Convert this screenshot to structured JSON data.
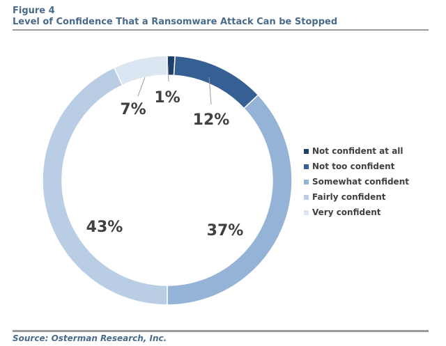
{
  "figure_label": "Figure 4",
  "source": "Source: Osterman Research, Inc.",
  "chart_data": {
    "type": "pie",
    "variant": "donut",
    "title": "Level of Confidence That a Ransomware Attack Can be Stopped",
    "categories": [
      "Not confident at all",
      "Not too confident",
      "Somewhat confident",
      "Fairly confident",
      "Very confident"
    ],
    "values": [
      1,
      12,
      37,
      43,
      7
    ],
    "value_labels": [
      "1%",
      "12%",
      "37%",
      "43%",
      "7%"
    ],
    "unit": "%",
    "colors": [
      "#1f3f6b",
      "#365f93",
      "#95b3d7",
      "#b9cde5",
      "#dce6f2"
    ],
    "legend_position": "right"
  }
}
